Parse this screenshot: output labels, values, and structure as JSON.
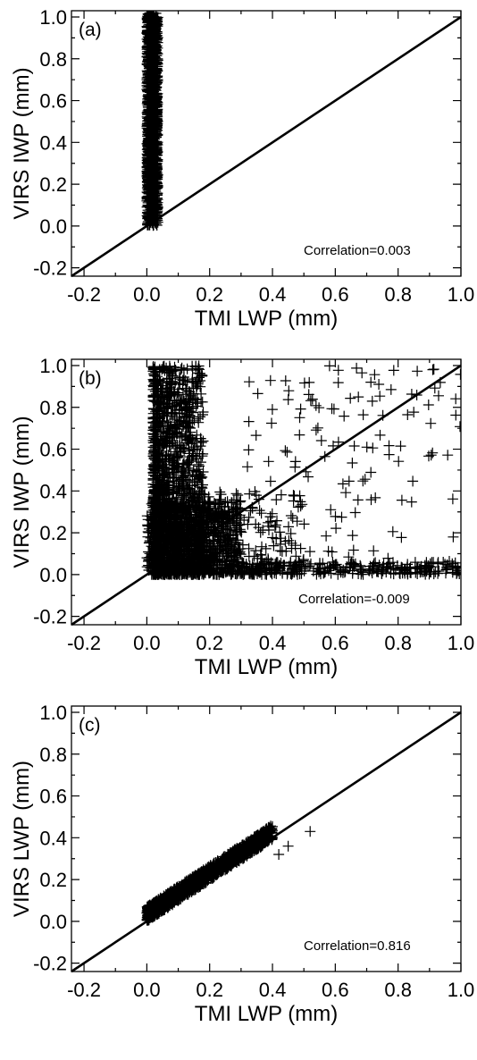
{
  "chart_data": [
    {
      "type": "scatter",
      "panel_label": "(a)",
      "xlabel": "TMI LWP (mm)",
      "ylabel": "VIRS IWP (mm)",
      "xlim": [
        -0.24,
        1.0
      ],
      "ylim": [
        -0.24,
        1.03
      ],
      "x_ticks": [
        "-0.2",
        "0.0",
        "0.2",
        "0.4",
        "0.6",
        "0.8",
        "1.0"
      ],
      "y_ticks": [
        "-0.2",
        "0.0",
        "0.2",
        "0.4",
        "0.6",
        "0.8",
        "1.0"
      ],
      "annotation": "Correlation=0.003",
      "marker": "+",
      "reference_line": "1:1",
      "cloud": [
        {
          "x0": 0.0,
          "x1": 0.035,
          "y0": 0.0,
          "y1": 1.02,
          "n": 1400,
          "skew": 1.0
        }
      ]
    },
    {
      "type": "scatter",
      "panel_label": "(b)",
      "xlabel": "TMI LWP (mm)",
      "ylabel": "VIRS IWP (mm)",
      "xlim": [
        -0.24,
        1.0
      ],
      "ylim": [
        -0.24,
        1.03
      ],
      "x_ticks": [
        "-0.2",
        "0.0",
        "0.2",
        "0.4",
        "0.6",
        "0.8",
        "1.0"
      ],
      "y_ticks": [
        "-0.2",
        "0.0",
        "0.2",
        "0.4",
        "0.6",
        "0.8",
        "1.0"
      ],
      "annotation": "Correlation=-0.009",
      "marker": "+",
      "reference_line": "1:1",
      "cloud": [
        {
          "x0": 0.02,
          "x1": 0.18,
          "y0": 0.0,
          "y1": 1.0,
          "n": 1600,
          "skew": 1.6
        },
        {
          "x0": 0.0,
          "x1": 0.3,
          "y0": 0.0,
          "y1": 0.35,
          "n": 700,
          "skew": 1.0
        },
        {
          "x0": 0.18,
          "x1": 0.5,
          "y0": 0.0,
          "y1": 0.4,
          "n": 260,
          "skew": 1.8
        },
        {
          "x0": 0.3,
          "x1": 1.0,
          "y0": 0.0,
          "y1": 0.06,
          "n": 260,
          "skew": 1.0
        },
        {
          "x0": 0.3,
          "x1": 1.0,
          "y0": 0.05,
          "y1": 1.0,
          "n": 130,
          "skew": 1.0
        }
      ]
    },
    {
      "type": "scatter",
      "panel_label": "(c)",
      "xlabel": "TMI LWP (mm)",
      "ylabel": "VIRS LWP (mm)",
      "xlim": [
        -0.24,
        1.0
      ],
      "ylim": [
        -0.24,
        1.03
      ],
      "x_ticks": [
        "-0.2",
        "0.0",
        "0.2",
        "0.4",
        "0.6",
        "0.8",
        "1.0"
      ],
      "y_ticks": [
        "-0.2",
        "0.0",
        "0.2",
        "0.4",
        "0.6",
        "0.8",
        "1.0"
      ],
      "annotation": "Correlation=0.816",
      "marker": "+",
      "reference_line": "1:1",
      "band": {
        "x0": 0.0,
        "x1": 0.4,
        "slope": 0.98,
        "intercept": 0.035,
        "spread": 0.035,
        "n": 1400
      },
      "points": [
        {
          "x": 0.52,
          "y": 0.43
        },
        {
          "x": 0.45,
          "y": 0.36
        },
        {
          "x": 0.42,
          "y": 0.32
        }
      ]
    }
  ]
}
